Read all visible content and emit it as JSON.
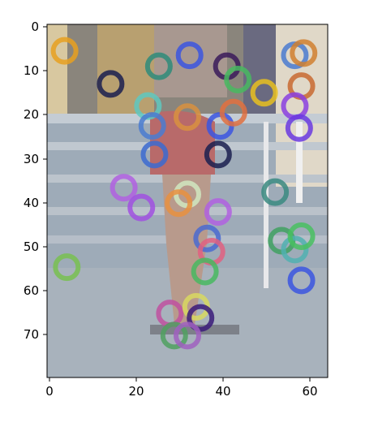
{
  "chart_data": {
    "type": "scatter",
    "title": "",
    "xlabel": "",
    "ylabel": "",
    "x_ticks": [
      "0",
      "20",
      "40",
      "60"
    ],
    "y_ticks": [
      "0",
      "10",
      "20",
      "30",
      "40",
      "50",
      "60",
      "70"
    ],
    "xlim": [
      -0.5,
      63.5
    ],
    "ylim": [
      79.5,
      -0.5
    ],
    "y_inverted": true,
    "grid": false,
    "background": "photo of a person walking on outdoor stone steps, upper body and legs visible, light gray steps",
    "marker": "hollow circle",
    "points": [
      {
        "x": 3.5,
        "y": 5.5,
        "color": "#e8a020"
      },
      {
        "x": 14,
        "y": 13,
        "color": "#1a1f4f"
      },
      {
        "x": 25,
        "y": 9,
        "color": "#2e8b7a"
      },
      {
        "x": 32,
        "y": 6.5,
        "color": "#3b55e0"
      },
      {
        "x": 40.5,
        "y": 9,
        "color": "#3a1a5a"
      },
      {
        "x": 43,
        "y": 12,
        "color": "#48b860"
      },
      {
        "x": 49,
        "y": 15,
        "color": "#e8c020"
      },
      {
        "x": 56,
        "y": 6.5,
        "color": "#4a7bd0"
      },
      {
        "x": 58,
        "y": 6,
        "color": "#d08030"
      },
      {
        "x": 57.5,
        "y": 13.5,
        "color": "#c86a30"
      },
      {
        "x": 22.5,
        "y": 18,
        "color": "#5ec8c0"
      },
      {
        "x": 31.5,
        "y": 20.5,
        "color": "#d89040"
      },
      {
        "x": 23.5,
        "y": 22.5,
        "color": "#4a7bd0"
      },
      {
        "x": 39,
        "y": 22.5,
        "color": "#3b55e0"
      },
      {
        "x": 42,
        "y": 19.5,
        "color": "#e07040"
      },
      {
        "x": 56,
        "y": 18,
        "color": "#8a40e0"
      },
      {
        "x": 57,
        "y": 23,
        "color": "#6a3ae0"
      },
      {
        "x": 24,
        "y": 29,
        "color": "#3b6ad0"
      },
      {
        "x": 38.5,
        "y": 29,
        "color": "#1a1f4f"
      },
      {
        "x": 17,
        "y": 36.5,
        "color": "#b060e0"
      },
      {
        "x": 21,
        "y": 41,
        "color": "#a050e0"
      },
      {
        "x": 31.5,
        "y": 38,
        "color": "#d0e8c0"
      },
      {
        "x": 29.5,
        "y": 40,
        "color": "#e89040"
      },
      {
        "x": 38.5,
        "y": 42,
        "color": "#b060e0"
      },
      {
        "x": 51.5,
        "y": 37.5,
        "color": "#3a8a80"
      },
      {
        "x": 36,
        "y": 48,
        "color": "#4a6ad0"
      },
      {
        "x": 37,
        "y": 51,
        "color": "#e06080"
      },
      {
        "x": 35.5,
        "y": 55.5,
        "color": "#48b860"
      },
      {
        "x": 53,
        "y": 48.5,
        "color": "#40a060"
      },
      {
        "x": 56,
        "y": 50.5,
        "color": "#50b0b0"
      },
      {
        "x": 57.5,
        "y": 47.5,
        "color": "#48c060"
      },
      {
        "x": 57.5,
        "y": 57.5,
        "color": "#3b55e0"
      },
      {
        "x": 4,
        "y": 54.5,
        "color": "#78c050"
      },
      {
        "x": 27.5,
        "y": 65,
        "color": "#c050a0"
      },
      {
        "x": 33.5,
        "y": 63.5,
        "color": "#d8d860"
      },
      {
        "x": 34.5,
        "y": 66,
        "color": "#3a1a7a"
      },
      {
        "x": 28.5,
        "y": 70,
        "color": "#50a060"
      },
      {
        "x": 31.5,
        "y": 70,
        "color": "#a060c0"
      }
    ]
  }
}
